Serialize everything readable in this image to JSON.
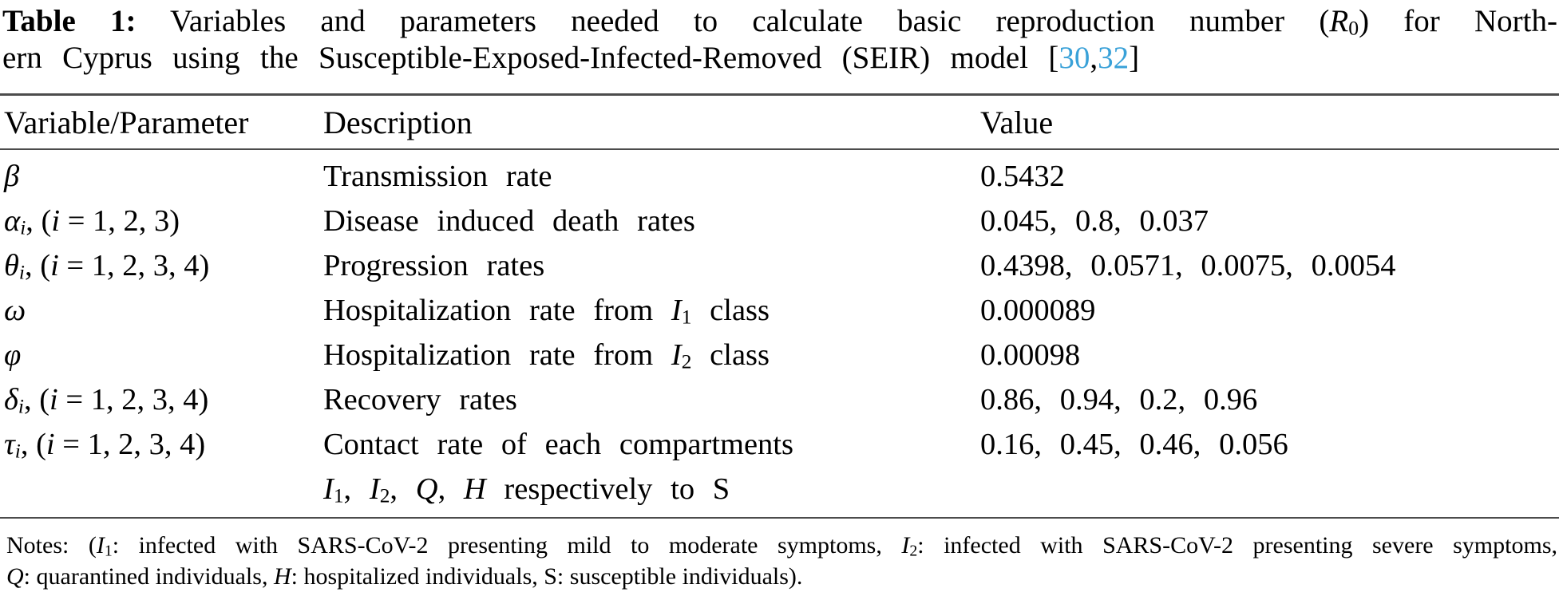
{
  "colors": {
    "citation": "#39a1d8",
    "rule": "#4c4c4c"
  },
  "caption": {
    "label": "Table 1:",
    "line1": [
      {
        "t": "Table 1:",
        "style": "b"
      },
      {
        "t": " Variables and parameters needed to calculate basic reproduction number ("
      },
      {
        "t": "R",
        "style": "it"
      },
      {
        "sub": "0"
      },
      {
        "t": ") for North-"
      }
    ],
    "line2": [
      {
        "t": "ern Cyprus using the Susceptible-Exposed-Infected-Removed (SEIR) model ["
      },
      {
        "t": "30",
        "style": "cite"
      },
      {
        "t": ","
      },
      {
        "t": "32",
        "style": "cite"
      },
      {
        "t": "]"
      }
    ]
  },
  "table": {
    "headers": [
      "Variable/Parameter",
      "Description",
      "Value"
    ],
    "rows": [
      {
        "variable": [
          {
            "t": "β",
            "style": "it"
          }
        ],
        "description": [
          {
            "t": "Transmission rate"
          }
        ],
        "value": "0.5432"
      },
      {
        "variable": [
          {
            "t": "α",
            "style": "it"
          },
          {
            "sub": "i",
            "style": "it"
          },
          {
            "t": ", ("
          },
          {
            "t": "i",
            "style": "it"
          },
          {
            "t": " = 1, 2, 3)"
          }
        ],
        "description": [
          {
            "t": "Disease induced death rates"
          }
        ],
        "value": "0.045, 0.8, 0.037"
      },
      {
        "variable": [
          {
            "t": "θ",
            "style": "it"
          },
          {
            "sub": "i",
            "style": "it"
          },
          {
            "t": ", ("
          },
          {
            "t": "i",
            "style": "it"
          },
          {
            "t": " = 1, 2, 3, 4)"
          }
        ],
        "description": [
          {
            "t": "Progression rates"
          }
        ],
        "value": "0.4398, 0.0571, 0.0075, 0.0054"
      },
      {
        "variable": [
          {
            "t": "ω",
            "style": "it"
          }
        ],
        "description": [
          {
            "t": "Hospitalization rate from "
          },
          {
            "t": "I",
            "style": "it"
          },
          {
            "sub": "1"
          },
          {
            "t": " class"
          }
        ],
        "value": "0.000089"
      },
      {
        "variable": [
          {
            "t": "φ",
            "style": "it"
          }
        ],
        "description": [
          {
            "t": "Hospitalization rate from "
          },
          {
            "t": "I",
            "style": "it"
          },
          {
            "sub": "2"
          },
          {
            "t": " class"
          }
        ],
        "value": "0.00098"
      },
      {
        "variable": [
          {
            "t": "δ",
            "style": "it"
          },
          {
            "sub": "i",
            "style": "it"
          },
          {
            "t": ", ("
          },
          {
            "t": "i",
            "style": "it"
          },
          {
            "t": " = 1, 2, 3, 4)"
          }
        ],
        "description": [
          {
            "t": "Recovery rates"
          }
        ],
        "value": "0.86, 0.94, 0.2, 0.96"
      },
      {
        "variable": [
          {
            "t": "τ",
            "style": "it"
          },
          {
            "sub": "i",
            "style": "it"
          },
          {
            "t": ", ("
          },
          {
            "t": "i",
            "style": "it"
          },
          {
            "t": " = 1, 2, 3, 4)"
          }
        ],
        "description": [
          {
            "t": "Contact rate of each compartments"
          }
        ],
        "description_line2": [
          {
            "t": "I",
            "style": "it"
          },
          {
            "sub": "1"
          },
          {
            "t": ", "
          },
          {
            "t": "I",
            "style": "it"
          },
          {
            "sub": "2"
          },
          {
            "t": ", "
          },
          {
            "t": "Q",
            "style": "it"
          },
          {
            "t": ", "
          },
          {
            "t": "H",
            "style": "it"
          },
          {
            "t": " respectively to S"
          }
        ],
        "value": "0.16, 0.45, 0.46, 0.056"
      }
    ]
  },
  "notes": {
    "line1": [
      {
        "t": "Notes: ("
      },
      {
        "t": "I",
        "style": "it"
      },
      {
        "sub": "1"
      },
      {
        "t": ": infected with SARS-CoV-2 presenting mild to moderate symptoms, "
      },
      {
        "t": "I",
        "style": "it"
      },
      {
        "sub": "2"
      },
      {
        "t": ": infected with SARS-CoV-2 presenting severe symptoms,"
      }
    ],
    "line2": [
      {
        "t": "Q",
        "style": "it"
      },
      {
        "t": ": quarantined individuals, "
      },
      {
        "t": "H",
        "style": "it"
      },
      {
        "t": ": hospitalized individuals, S: susceptible individuals)."
      }
    ]
  }
}
